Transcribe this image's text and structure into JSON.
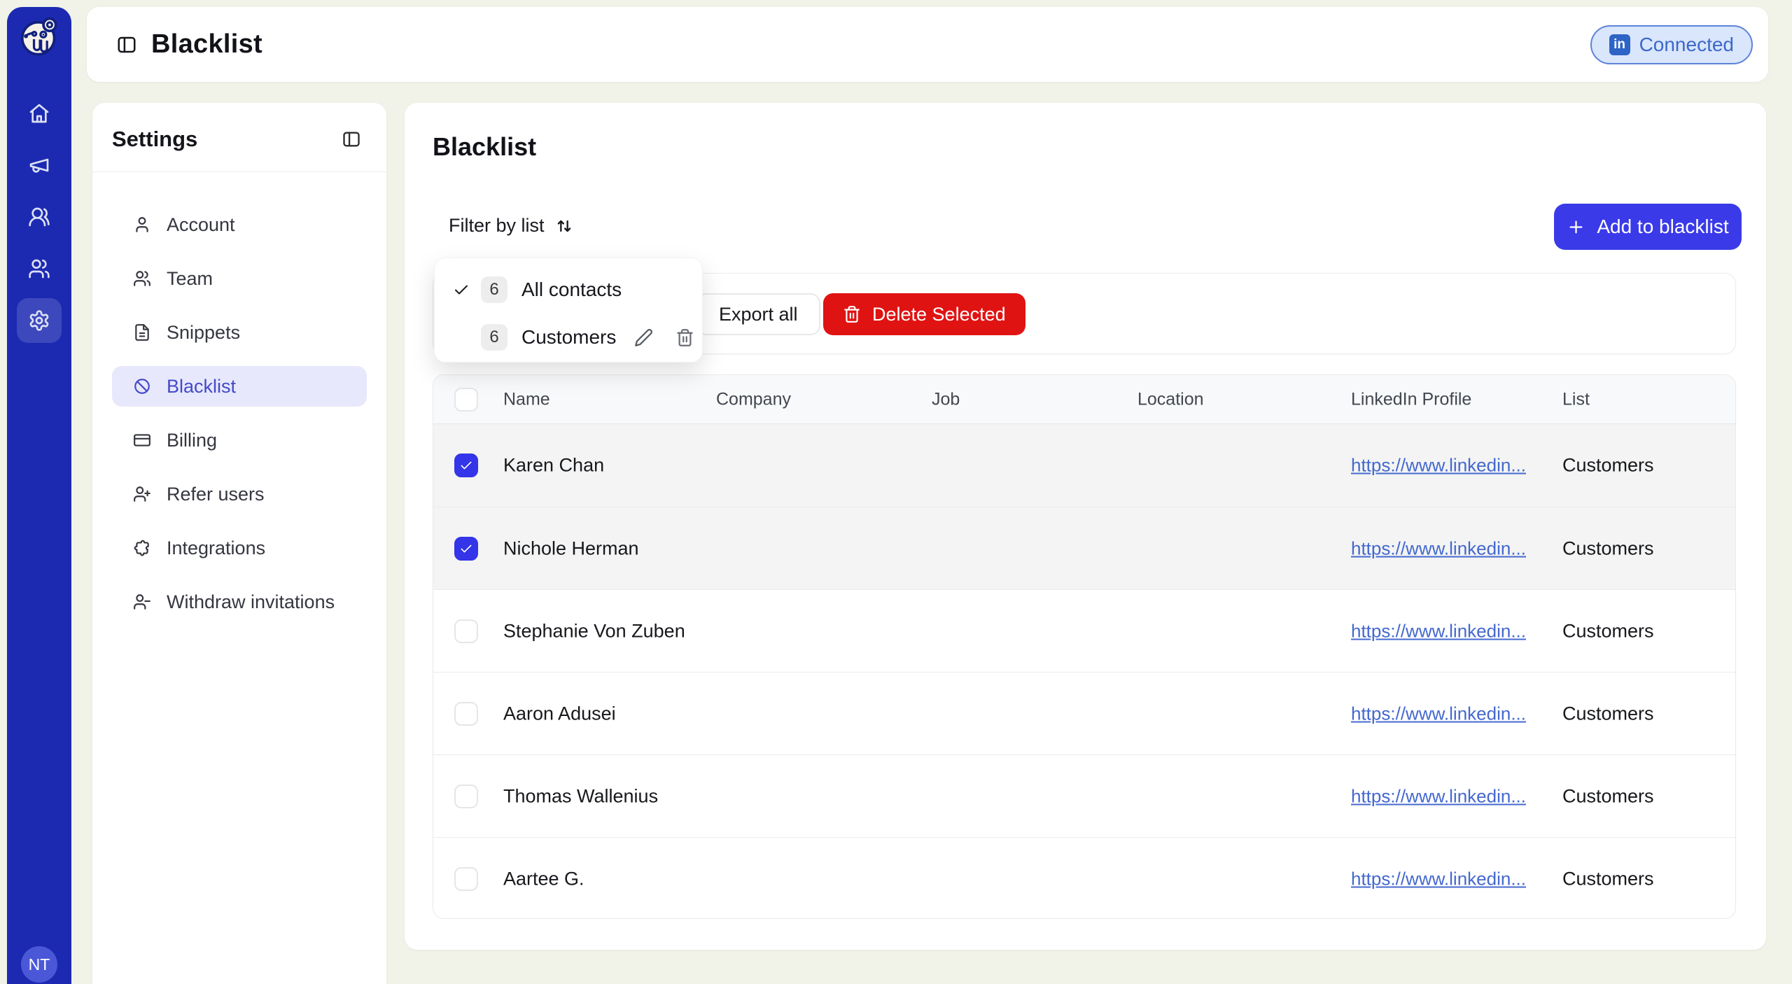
{
  "app": {
    "logo_icon": "botdog-logo",
    "avatar_initials": "NT"
  },
  "header": {
    "title": "Blacklist",
    "toggle_icon": "panel-left",
    "connected_label": "Connected",
    "connected_icon": "linkedin"
  },
  "sidebar": {
    "items": [
      {
        "name": "home",
        "icon": "home",
        "active": false
      },
      {
        "name": "campaigns",
        "icon": "megaphone",
        "active": false
      },
      {
        "name": "contacts",
        "icon": "users-round",
        "active": false
      },
      {
        "name": "people",
        "icon": "users",
        "active": false
      },
      {
        "name": "settings",
        "icon": "settings",
        "active": true
      }
    ]
  },
  "settings_panel": {
    "title": "Settings",
    "collapse_icon": "panel-left",
    "items": [
      {
        "label": "Account",
        "icon": "user",
        "active": false
      },
      {
        "label": "Team",
        "icon": "users",
        "active": false
      },
      {
        "label": "Snippets",
        "icon": "file-text",
        "active": false
      },
      {
        "label": "Blacklist",
        "icon": "ban",
        "active": true
      },
      {
        "label": "Billing",
        "icon": "credit-card",
        "active": false
      },
      {
        "label": "Refer users",
        "icon": "user-plus",
        "active": false
      },
      {
        "label": "Integrations",
        "icon": "puzzle",
        "active": false
      },
      {
        "label": "Withdraw invitations",
        "icon": "user-minus",
        "active": false
      }
    ]
  },
  "main": {
    "title": "Blacklist",
    "filter_label": "Filter by list",
    "filter_icon": "arrow-up-down",
    "add_button": "Add to blacklist",
    "export_button": "Export all",
    "delete_button": "Delete Selected",
    "list_dropdown": {
      "options": [
        {
          "count": "6",
          "label": "All contacts",
          "selected": true,
          "editable": false
        },
        {
          "count": "6",
          "label": "Customers",
          "selected": false,
          "editable": true
        }
      ]
    },
    "table": {
      "columns": [
        "Name",
        "Company",
        "Job",
        "Location",
        "LinkedIn Profile",
        "List"
      ],
      "rows": [
        {
          "name": "Karen Chan",
          "company": "",
          "job": "",
          "location": "",
          "linkedin": "https://www.linkedin...",
          "list": "Customers",
          "checked": true
        },
        {
          "name": "Nichole Herman",
          "company": "",
          "job": "",
          "location": "",
          "linkedin": "https://www.linkedin...",
          "list": "Customers",
          "checked": true
        },
        {
          "name": "Stephanie Von Zuben",
          "company": "",
          "job": "",
          "location": "",
          "linkedin": "https://www.linkedin...",
          "list": "Customers",
          "checked": false
        },
        {
          "name": "Aaron Adusei",
          "company": "",
          "job": "",
          "location": "",
          "linkedin": "https://www.linkedin...",
          "list": "Customers",
          "checked": false
        },
        {
          "name": "Thomas Wallenius",
          "company": "",
          "job": "",
          "location": "",
          "linkedin": "https://www.linkedin...",
          "list": "Customers",
          "checked": false
        },
        {
          "name": "Aartee G.",
          "company": "",
          "job": "",
          "location": "",
          "linkedin": "https://www.linkedin...",
          "list": "Customers",
          "checked": false
        }
      ]
    }
  },
  "colors": {
    "background": "#f1f2e8",
    "sidebar_blue": "#1c2ab2",
    "accent_blue": "#3a3ae9",
    "danger_red": "#e01313",
    "active_nav_text": "#444ac8",
    "active_nav_bg": "#e7e8fb",
    "link_blue": "#4468cf",
    "connected_bg": "#d9e6fb",
    "connected_border": "#5d83da",
    "connected_text": "#3c68c8",
    "selected_row_bg": "#f3f4f3",
    "checkbox_checked": "#3434e8"
  }
}
